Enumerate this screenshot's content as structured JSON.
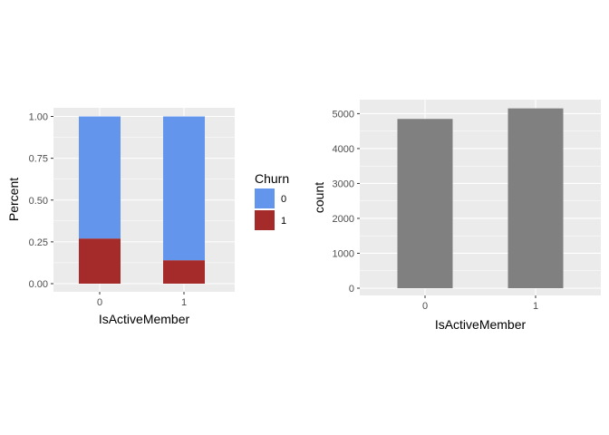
{
  "chart_data": [
    {
      "type": "bar",
      "stacked": true,
      "categories": [
        "0",
        "1"
      ],
      "series": [
        {
          "name": "0",
          "values": [
            0.73,
            0.86
          ],
          "color": "#6495ED"
        },
        {
          "name": "1",
          "values": [
            0.27,
            0.14
          ],
          "color": "#A52A2A"
        }
      ],
      "xlabel": "IsActiveMember",
      "ylabel": "Percent",
      "ylim": [
        0,
        1
      ],
      "yticks": [
        {
          "value": 0,
          "label": "0.00"
        },
        {
          "value": 0.25,
          "label": "0.25"
        },
        {
          "value": 0.5,
          "label": "0.50"
        },
        {
          "value": 0.75,
          "label": "0.75"
        },
        {
          "value": 1,
          "label": "1.00"
        }
      ],
      "grid": true,
      "panel_background": "#EBEBEB",
      "legend": {
        "title": "Churn",
        "position": "right",
        "entries": [
          "0",
          "1"
        ]
      }
    },
    {
      "type": "bar",
      "categories": [
        "0",
        "1"
      ],
      "values": [
        4849,
        5151
      ],
      "color": "#808080",
      "xlabel": "IsActiveMember",
      "ylabel": "count",
      "ylim": [
        0,
        5400
      ],
      "yticks": [
        {
          "value": 0,
          "label": "0"
        },
        {
          "value": 1000,
          "label": "1000"
        },
        {
          "value": 2000,
          "label": "2000"
        },
        {
          "value": 3000,
          "label": "3000"
        },
        {
          "value": 4000,
          "label": "4000"
        },
        {
          "value": 5000,
          "label": "5000"
        }
      ],
      "grid": true,
      "panel_background": "#EBEBEB"
    }
  ]
}
